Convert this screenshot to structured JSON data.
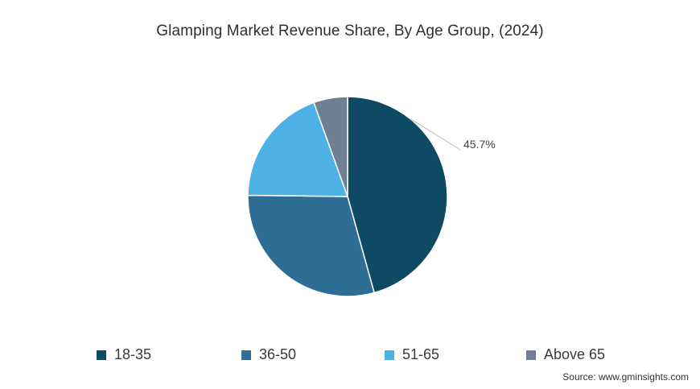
{
  "chart_data": {
    "type": "pie",
    "title": "Glamping Market Revenue Share, By Age Group, (2024)",
    "categories": [
      "18-35",
      "36-50",
      "51-65",
      "Above 65"
    ],
    "values": [
      45.7,
      29.5,
      19.3,
      5.5
    ],
    "colors": [
      "#0e4a63",
      "#2e6e95",
      "#4fb2e6",
      "#6f8094"
    ],
    "data_labels": [
      "45.7%",
      "",
      "",
      ""
    ],
    "legend_position": "bottom",
    "source": "Source: www.gminsights.com"
  }
}
